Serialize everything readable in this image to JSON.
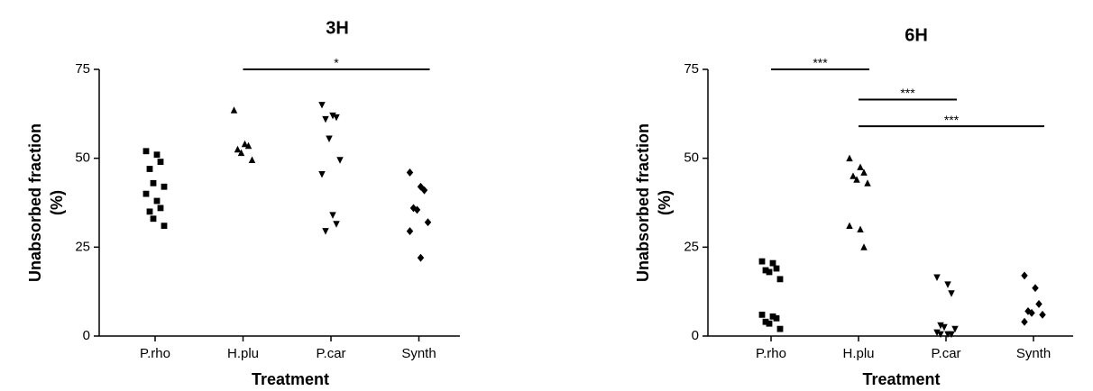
{
  "chart_data": [
    {
      "type": "dot",
      "title": "3H",
      "xlabel": "Treatment",
      "ylabel": [
        "Unabsorbed fraction",
        "(%)"
      ],
      "categories": [
        "P.rho",
        "H.plu",
        "P.car",
        "Synth"
      ],
      "markers": [
        "square",
        "triangle-up",
        "triangle-down",
        "diamond"
      ],
      "color": "#000000",
      "values": [
        [
          52,
          51,
          49,
          47,
          43,
          42,
          40,
          38,
          36,
          35,
          33,
          31
        ],
        [
          63.5,
          54,
          53.5,
          52.5,
          51.5,
          49.5
        ],
        [
          65,
          62,
          61.5,
          61,
          55.5,
          49.5,
          45.5,
          34,
          31.5,
          29.5
        ],
        [
          46,
          42,
          41,
          36,
          35.5,
          32,
          29.5,
          22
        ]
      ],
      "ylim": [
        0,
        75
      ],
      "yticks": [
        0,
        25,
        50,
        75
      ],
      "brackets": [
        {
          "from": "H.plu",
          "to": "Synth",
          "y": 75,
          "label": "*"
        }
      ]
    },
    {
      "type": "dot",
      "title": "6H",
      "xlabel": "Treatment",
      "ylabel": [
        "Unabsorbed fraction",
        "(%)"
      ],
      "categories": [
        "P.rho",
        "H.plu",
        "P.car",
        "Synth"
      ],
      "markers": [
        "square",
        "triangle-up",
        "triangle-down",
        "diamond"
      ],
      "color": "#000000",
      "values": [
        [
          21,
          20.5,
          19,
          18.5,
          18,
          16,
          6,
          5.5,
          5,
          4,
          3.5,
          2
        ],
        [
          50,
          47.5,
          46,
          45,
          44,
          43,
          31,
          30,
          25
        ],
        [
          16.5,
          14.5,
          12,
          3,
          2.5,
          2,
          1,
          0.5,
          0.5,
          0.5
        ],
        [
          17,
          13.5,
          9,
          7,
          6.5,
          6,
          4
        ]
      ],
      "ylim": [
        0,
        75
      ],
      "yticks": [
        0,
        25,
        50,
        75
      ],
      "brackets": [
        {
          "from": "P.rho",
          "to": "H.plu",
          "y": 75,
          "label": "***"
        },
        {
          "from": "H.plu",
          "to": "P.car",
          "y": 66.5,
          "label": "***"
        },
        {
          "from": "H.plu",
          "to": "Synth",
          "y": 59,
          "label": "***"
        }
      ]
    }
  ]
}
